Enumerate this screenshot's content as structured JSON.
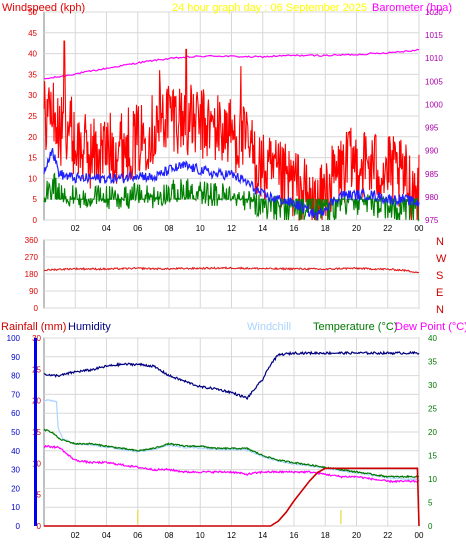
{
  "colors": {
    "wind": "#ff0000",
    "gust": "#ff0000",
    "avg_wind": "#2020ff",
    "wind_fill": "#008000",
    "baro": "#ff00ff",
    "title": "#ffff00",
    "direction": "#e02020",
    "humidity": "#000080",
    "rain": "#cc0000",
    "temp": "#007700",
    "dew": "#ff00ff",
    "chill": "#aad4ff",
    "axis_left": "#dd0000",
    "axis_right": "#aa00aa",
    "grid": "#d8d8d8",
    "bg": "#ffffff",
    "frame": "#808080"
  },
  "chart_data": [
    {
      "id": "wind_baro",
      "type": "line",
      "title": "24 hour graph day : 06 September 2025",
      "ylabel_left": "Windspeed (kph)",
      "ylabel_right": "Barometer (hpa)",
      "ylim_left": [
        0,
        50
      ],
      "ylim_right": [
        975,
        1020
      ],
      "yticks_left": [
        "0",
        "5",
        "10",
        "15",
        "20",
        "25",
        "30",
        "35",
        "40",
        "45",
        "50"
      ],
      "yticks_right": [
        "975",
        "980",
        "985",
        "990",
        "995",
        "1000",
        "1005",
        "1010",
        "1015",
        "1020"
      ],
      "xlim": [
        0,
        24
      ],
      "xticks": [
        "02",
        "04",
        "06",
        "08",
        "10",
        "12",
        "14",
        "16",
        "18",
        "20",
        "22",
        "00"
      ],
      "series": [
        {
          "axis": "right",
          "x": [
            0,
            1,
            2,
            3,
            4,
            5,
            6,
            7,
            8,
            9,
            10,
            11,
            12,
            13,
            14,
            15,
            16,
            17,
            18,
            19,
            20,
            21,
            22,
            23,
            24
          ],
          "y": [
            1005.5,
            1006,
            1006.6,
            1007.2,
            1007.8,
            1008.4,
            1009,
            1009.5,
            1009.9,
            1010.2,
            1010.4,
            1010.5,
            1010.4,
            1010.3,
            1010.3,
            1010.5,
            1010.6,
            1010.6,
            1010.6,
            1010.7,
            1010.8,
            1011,
            1011.2,
            1011.5,
            1011.8
          ]
        },
        {
          "x": [
            0,
            0.5,
            1,
            2,
            3,
            4,
            5,
            6,
            7,
            8,
            9,
            10,
            11,
            12,
            13,
            14,
            15,
            16,
            17,
            17.5,
            18,
            19,
            20,
            21,
            22,
            23,
            24
          ],
          "y": [
            12,
            17,
            11,
            10,
            10,
            10,
            10,
            11,
            10,
            12,
            13,
            12,
            11,
            11,
            9,
            6,
            5,
            4,
            2,
            1,
            3,
            6,
            6,
            6,
            5,
            5,
            4
          ]
        },
        {
          "x": [
            0,
            0.5,
            1,
            1.5,
            2,
            3,
            4,
            5,
            6,
            7,
            8,
            9,
            10,
            11,
            12,
            13,
            14,
            15,
            16,
            17,
            17.5,
            18,
            19,
            20,
            21,
            22,
            23,
            24
          ],
          "y": [
            25,
            27,
            20,
            24,
            18,
            16,
            17,
            18,
            19,
            22,
            26,
            24,
            23,
            22,
            21,
            18,
            12,
            10,
            9,
            5,
            2,
            7,
            12,
            14,
            13,
            12,
            10,
            7
          ]
        }
      ],
      "peaks": [
        {
          "x": 1.3,
          "y": 43
        },
        {
          "x": 9.1,
          "y": 41
        },
        {
          "x": 12.6,
          "y": 37
        },
        {
          "x": 7.4,
          "y": 36
        },
        {
          "x": 19.5,
          "y": 21
        }
      ]
    },
    {
      "id": "direction",
      "type": "line",
      "ylabel_right_letters": [
        "N",
        "W",
        "S",
        "E",
        "N"
      ],
      "ylim": [
        0,
        360
      ],
      "yticks": [
        "0",
        "90",
        "180",
        "270",
        "360"
      ],
      "xlim": [
        0,
        24
      ],
      "series": [
        {
          "x": [
            0,
            1,
            2,
            3,
            4,
            5,
            6,
            7,
            8,
            9,
            10,
            11,
            12,
            13,
            14,
            15,
            16,
            17,
            18,
            19,
            20,
            21,
            22,
            23,
            24
          ],
          "y": [
            200,
            205,
            208,
            207,
            206,
            208,
            210,
            208,
            207,
            209,
            210,
            211,
            212,
            210,
            209,
            207,
            208,
            207,
            205,
            209,
            210,
            207,
            205,
            200,
            188
          ]
        }
      ]
    },
    {
      "id": "temp_hum_rain",
      "type": "line",
      "labels": {
        "rain": "Rainfall (mm)",
        "humidity": "Humidity",
        "chill": "Windchill",
        "temp": "Temperature (°C)",
        "dew": "Dew Point (°C)"
      },
      "yticks_humidity": [
        "0",
        "10",
        "20",
        "30",
        "40",
        "50",
        "60",
        "70",
        "80",
        "90",
        "100"
      ],
      "yticks_rain": [
        "0",
        "5",
        "10",
        "15",
        "20",
        "25",
        "30"
      ],
      "yticks_temp": [
        "0",
        "5",
        "10",
        "15",
        "20",
        "25",
        "30",
        "35",
        "40"
      ],
      "ylim_humidity": [
        0,
        100
      ],
      "ylim_rain": [
        0,
        30
      ],
      "ylim_temp": [
        0,
        40
      ],
      "xlim": [
        0,
        24
      ],
      "xticks": [
        "02",
        "04",
        "06",
        "08",
        "10",
        "12",
        "14",
        "16",
        "18",
        "20",
        "22",
        "00"
      ],
      "series": [
        {
          "name": "humidity",
          "x": [
            0,
            0.5,
            1,
            2,
            3,
            4,
            5,
            6,
            7,
            8,
            9,
            10,
            11,
            12,
            13,
            14,
            14.5,
            15,
            16,
            17,
            18,
            19,
            20,
            21,
            22,
            23,
            24
          ],
          "y": [
            81,
            80,
            80,
            82,
            83,
            85,
            86,
            86,
            85,
            80,
            77,
            74,
            73,
            71,
            68,
            78,
            86,
            91,
            92,
            92,
            92,
            92,
            92,
            92,
            92,
            92,
            92
          ]
        },
        {
          "name": "temp",
          "x": [
            0,
            0.5,
            1,
            2,
            3,
            4,
            5,
            6,
            7,
            8,
            9,
            10,
            11,
            12,
            13,
            14,
            15,
            16,
            17,
            18,
            19,
            20,
            21,
            22,
            23,
            24
          ],
          "y": [
            20.5,
            20,
            18.5,
            17.5,
            17.5,
            17,
            16.5,
            16,
            16.5,
            17.5,
            17,
            17,
            16.5,
            16.5,
            16.5,
            15,
            14,
            13.5,
            13,
            12.5,
            12,
            11.5,
            11,
            10.5,
            10.5,
            10.5
          ]
        },
        {
          "name": "chill",
          "x": [
            0,
            0.2,
            0.8,
            0.9,
            1.2,
            2,
            3,
            4,
            5,
            6,
            7,
            8,
            9,
            10,
            11,
            12,
            13,
            14,
            15,
            16,
            17,
            18,
            19,
            20,
            21,
            22,
            23,
            24
          ],
          "y": [
            26.5,
            26.8,
            26.5,
            21,
            18.5,
            17.5,
            17.3,
            16.8,
            16.3,
            15.8,
            16.3,
            17.2,
            16.7,
            16.6,
            16.3,
            16.3,
            16.2,
            14.8,
            13.8,
            13.2,
            12.8,
            12.3,
            11.8,
            11.3,
            10.8,
            10.3,
            10,
            10
          ]
        },
        {
          "name": "dew",
          "x": [
            0,
            1,
            1.5,
            2,
            3,
            4,
            5,
            6,
            7,
            8,
            9,
            10,
            11,
            12,
            13,
            14,
            15,
            16,
            17,
            18,
            19,
            20,
            21,
            22,
            23,
            24
          ],
          "y": [
            17,
            16.7,
            15.2,
            14,
            13.5,
            13.5,
            13,
            12.5,
            12,
            12,
            11.5,
            11.5,
            11.5,
            11.5,
            11,
            11.5,
            11.5,
            11.5,
            11.5,
            11,
            10.5,
            10.5,
            10,
            9.5,
            9.5,
            9.5
          ]
        },
        {
          "name": "rain",
          "x": [
            0,
            14.5,
            15,
            15.5,
            16,
            16.5,
            17,
            17.5,
            18,
            19,
            20,
            21,
            22,
            23,
            23.9,
            24
          ],
          "y": [
            0,
            0,
            0.8,
            2.2,
            4,
            5.6,
            7.2,
            8.5,
            9.2,
            9.2,
            9.2,
            9.2,
            9.2,
            9.2,
            9.2,
            0
          ]
        }
      ],
      "rain_marks_x": [
        6,
        19
      ]
    }
  ]
}
